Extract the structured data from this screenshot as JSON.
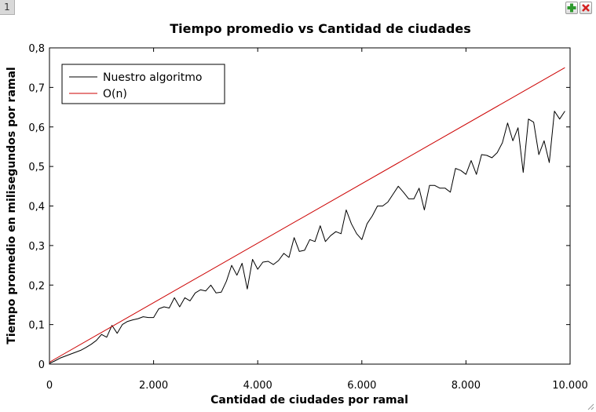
{
  "window": {
    "tab_number": "1",
    "add_icon": "plus-icon",
    "close_icon": "close-x-icon",
    "add_color": "#2e9a2e",
    "close_color": "#d42020"
  },
  "chart_data": {
    "type": "line",
    "title": "Tiempo promedio vs Cantidad de ciudades",
    "xlabel": "Cantidad de ciudades por ramal",
    "ylabel": "Tiempo promedio en milisegundos por ramal",
    "xlim": [
      0,
      10000
    ],
    "ylim": [
      0,
      0.8
    ],
    "x_ticks": [
      0,
      2000,
      4000,
      6000,
      8000,
      10000
    ],
    "x_tick_labels": [
      "0",
      "2.000",
      "4.000",
      "6.000",
      "8.000",
      "10.000"
    ],
    "y_ticks": [
      0,
      0.1,
      0.2,
      0.3,
      0.4,
      0.5,
      0.6,
      0.7,
      0.8
    ],
    "y_tick_labels": [
      "0",
      "0,1",
      "0,2",
      "0,3",
      "0,4",
      "0,5",
      "0,6",
      "0,7",
      "0,8"
    ],
    "grid": false,
    "legend_position": "top-left",
    "series": [
      {
        "name": "Nuestro algoritmo",
        "color": "#000000",
        "x": [
          0,
          100,
          200,
          300,
          400,
          500,
          600,
          700,
          800,
          900,
          1000,
          1100,
          1200,
          1300,
          1400,
          1500,
          1600,
          1700,
          1800,
          1900,
          2000,
          2100,
          2200,
          2300,
          2400,
          2500,
          2600,
          2700,
          2800,
          2900,
          3000,
          3100,
          3200,
          3300,
          3400,
          3500,
          3600,
          3700,
          3800,
          3900,
          4000,
          4100,
          4200,
          4300,
          4400,
          4500,
          4600,
          4700,
          4800,
          4900,
          5000,
          5100,
          5200,
          5300,
          5400,
          5500,
          5600,
          5700,
          5800,
          5900,
          6000,
          6100,
          6200,
          6300,
          6400,
          6500,
          6600,
          6700,
          6800,
          6900,
          7000,
          7100,
          7200,
          7300,
          7400,
          7500,
          7600,
          7700,
          7800,
          7900,
          8000,
          8100,
          8200,
          8300,
          8400,
          8500,
          8600,
          8700,
          8800,
          8900,
          9000,
          9100,
          9200,
          9300,
          9400,
          9500,
          9600,
          9700,
          9800,
          9900
        ],
        "y": [
          0.002,
          0.008,
          0.015,
          0.02,
          0.025,
          0.03,
          0.035,
          0.042,
          0.05,
          0.06,
          0.075,
          0.068,
          0.098,
          0.078,
          0.1,
          0.108,
          0.112,
          0.115,
          0.12,
          0.118,
          0.118,
          0.14,
          0.145,
          0.142,
          0.168,
          0.145,
          0.168,
          0.16,
          0.18,
          0.188,
          0.185,
          0.2,
          0.18,
          0.182,
          0.21,
          0.25,
          0.225,
          0.255,
          0.19,
          0.265,
          0.24,
          0.258,
          0.26,
          0.252,
          0.262,
          0.28,
          0.27,
          0.32,
          0.285,
          0.288,
          0.315,
          0.31,
          0.35,
          0.31,
          0.325,
          0.335,
          0.33,
          0.39,
          0.355,
          0.33,
          0.315,
          0.355,
          0.375,
          0.4,
          0.4,
          0.41,
          0.43,
          0.45,
          0.435,
          0.418,
          0.418,
          0.445,
          0.39,
          0.452,
          0.452,
          0.445,
          0.445,
          0.435,
          0.495,
          0.49,
          0.48,
          0.515,
          0.48,
          0.53,
          0.528,
          0.522,
          0.535,
          0.56,
          0.61,
          0.565,
          0.598,
          0.485,
          0.62,
          0.612,
          0.53,
          0.565,
          0.51,
          0.64,
          0.62,
          0.64
        ]
      },
      {
        "name": "O(n)",
        "color": "#cc0000",
        "x": [
          0,
          9900
        ],
        "y": [
          0.005,
          0.75
        ]
      }
    ]
  }
}
